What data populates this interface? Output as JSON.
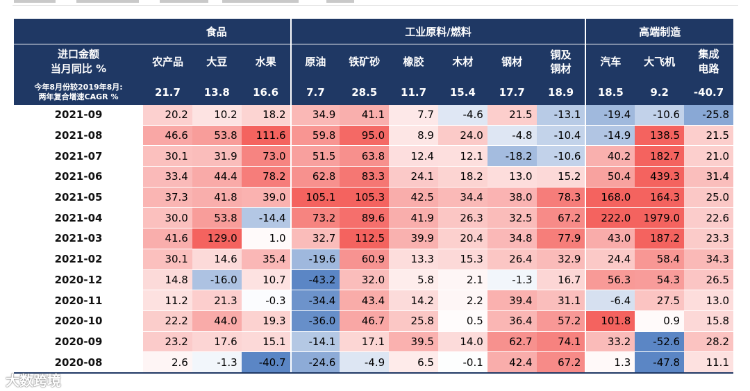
{
  "header": {
    "groups": [
      "食品",
      "工业原料/燃料",
      "高端制造"
    ],
    "row_label_line1": "进口金额",
    "row_label_line2": "当月同比 %",
    "cagr_label_line1": "今年8月份较2019年8月:",
    "cagr_label_line2": "两年复合增速CAGR %"
  },
  "watermark": "大数跨境",
  "chart_data": {
    "type": "heatmap",
    "column_groups": [
      {
        "name": "食品",
        "columns": [
          "农产品",
          "大豆",
          "水果"
        ]
      },
      {
        "name": "工业原料/燃料",
        "columns": [
          "原油",
          "铁矿砂",
          "橡胶",
          "木材",
          "钢材",
          "铜及铜材"
        ]
      },
      {
        "name": "高端制造",
        "columns": [
          "汽车",
          "大飞机",
          "集成电路"
        ]
      }
    ],
    "columns": [
      "农产品",
      "大豆",
      "水果",
      "原油",
      "铁矿砂",
      "橡胶",
      "木材",
      "钢材",
      "铜及铜材",
      "汽车",
      "大飞机",
      "集成电路"
    ],
    "cagr": [
      "21.7",
      "13.8",
      "16.6",
      "7.7",
      "28.5",
      "11.7",
      "15.4",
      "17.7",
      "18.9",
      "18.5",
      "9.2",
      "-40.7"
    ],
    "rows": [
      {
        "date": "2021-09",
        "values": [
          "20.2",
          "10.2",
          "18.2",
          "34.9",
          "41.1",
          "7.7",
          "-4.6",
          "21.5",
          "-13.1",
          "-19.4",
          "-10.6",
          "-25.8"
        ]
      },
      {
        "date": "2021-08",
        "values": [
          "46.6",
          "53.8",
          "111.6",
          "59.8",
          "95.0",
          "8.9",
          "24.0",
          "-4.8",
          "-10.4",
          "-14.9",
          "138.5",
          "21.5"
        ]
      },
      {
        "date": "2021-07",
        "values": [
          "30.1",
          "31.9",
          "73.0",
          "51.5",
          "63.8",
          "12.4",
          "12.1",
          "-18.2",
          "-10.6",
          "40.2",
          "182.7",
          "21.0"
        ]
      },
      {
        "date": "2021-06",
        "values": [
          "33.4",
          "44.4",
          "78.2",
          "62.8",
          "83.3",
          "24.1",
          "18.2",
          "13.0",
          "15.2",
          "50.4",
          "439.3",
          "31.4"
        ]
      },
      {
        "date": "2021-05",
        "values": [
          "37.3",
          "41.8",
          "39.0",
          "105.1",
          "105.3",
          "42.5",
          "34.4",
          "38.0",
          "78.3",
          "168.0",
          "164.3",
          "25.0"
        ]
      },
      {
        "date": "2021-04",
        "values": [
          "30.0",
          "53.8",
          "-14.4",
          "73.2",
          "89.6",
          "41.9",
          "26.3",
          "32.5",
          "67.2",
          "222.0",
          "1979.0",
          "22.6"
        ]
      },
      {
        "date": "2021-03",
        "values": [
          "41.6",
          "129.0",
          "1.0",
          "32.7",
          "112.5",
          "39.9",
          "20.4",
          "34.8",
          "77.9",
          "43.0",
          "187.2",
          "23.3"
        ]
      },
      {
        "date": "2021-02",
        "values": [
          "30.1",
          "14.6",
          "35.4",
          "-19.6",
          "60.9",
          "13.3",
          "15.3",
          "26.4",
          "32.9",
          "24.4",
          "58.4",
          "34.3"
        ]
      },
      {
        "date": "2020-12",
        "values": [
          "14.8",
          "-16.0",
          "10.7",
          "-43.2",
          "32.0",
          "5.8",
          "2.1",
          "-1.3",
          "16.7",
          "56.3",
          "54.3",
          "26.5"
        ]
      },
      {
        "date": "2020-11",
        "values": [
          "11.2",
          "21.3",
          "-0.3",
          "-34.4",
          "43.4",
          "14.2",
          "2.2",
          "39.4",
          "31.1",
          "-6.4",
          "27.5",
          "13.0"
        ]
      },
      {
        "date": "2020-10",
        "values": [
          "22.2",
          "44.0",
          "19.3",
          "-36.0",
          "46.7",
          "25.8",
          "0.5",
          "36.4",
          "57.2",
          "101.8",
          "0.9",
          "15.8"
        ]
      },
      {
        "date": "2020-09",
        "values": [
          "23.2",
          "17.6",
          "15.1",
          "-14.1",
          "17.1",
          "39.5",
          "14.0",
          "62.7",
          "74.1",
          "33.2",
          "-52.6",
          "28.2"
        ]
      },
      {
        "date": "2020-08",
        "values": [
          "2.6",
          "-1.3",
          "-40.7",
          "-24.6",
          "-4.9",
          "6.5",
          "-0.1",
          "42.4",
          "67.2",
          "1.3",
          "-47.8",
          "11.1"
        ]
      }
    ],
    "color_scale": {
      "negative": "#5b86c5",
      "neutral": "#ffffff",
      "positive": "#f4635f"
    }
  }
}
